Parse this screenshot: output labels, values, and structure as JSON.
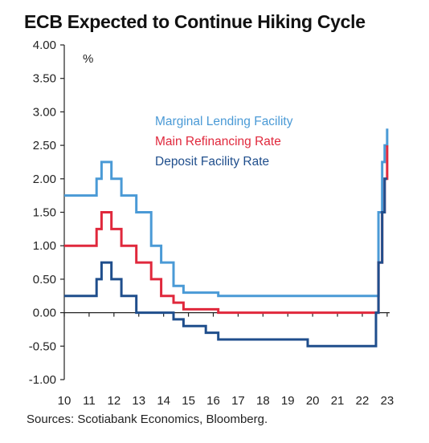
{
  "title": "ECB Expected to Continue Hiking Cycle",
  "source_note": "Sources: Scotiabank Economics, Bloomberg.",
  "chart_data": {
    "type": "line",
    "title": "ECB Expected to Continue Hiking Cycle",
    "ylabel": "%",
    "xlim": [
      10,
      23.1
    ],
    "ylim": [
      -1.0,
      4.0
    ],
    "yticks": [
      4.0,
      3.5,
      3.0,
      2.5,
      2.0,
      1.5,
      1.0,
      0.5,
      0.0,
      -0.5,
      -1.0
    ],
    "ytick_labels": [
      "4.00",
      "3.50",
      "3.00",
      "2.50",
      "2.00",
      "1.50",
      "1.00",
      "0.50",
      "0.00",
      "-0.50",
      "-1.00"
    ],
    "xticks": [
      10,
      11,
      12,
      13,
      14,
      15,
      16,
      17,
      18,
      19,
      20,
      21,
      22,
      23
    ],
    "xtick_labels": [
      "10",
      "11",
      "12",
      "13",
      "14",
      "15",
      "16",
      "17",
      "18",
      "19",
      "20",
      "21",
      "22",
      "23"
    ],
    "legend_placement": "upper-center",
    "grid": false,
    "series": [
      {
        "name": "Marginal Lending Facility",
        "color": "#4a9ad6",
        "x": [
          10,
          11.3,
          11.5,
          11.9,
          12.3,
          12.9,
          13.5,
          13.9,
          14.4,
          14.8,
          15.2,
          15.7,
          16.2,
          22.55,
          22.65,
          22.8,
          22.9,
          23.0
        ],
        "y": [
          1.75,
          2.0,
          2.25,
          2.0,
          1.75,
          1.5,
          1.0,
          0.75,
          0.4,
          0.3,
          0.3,
          0.3,
          0.25,
          0.25,
          1.5,
          2.25,
          2.5,
          2.75
        ]
      },
      {
        "name": "Main Refinancing Rate",
        "color": "#e0283c",
        "x": [
          10,
          11.3,
          11.5,
          11.9,
          12.3,
          12.9,
          13.5,
          13.9,
          14.4,
          14.8,
          15.2,
          15.7,
          16.2,
          22.55,
          22.65,
          22.8,
          22.9,
          23.0
        ],
        "y": [
          1.0,
          1.25,
          1.5,
          1.25,
          1.0,
          0.75,
          0.5,
          0.25,
          0.15,
          0.05,
          0.05,
          0.05,
          0.0,
          0.0,
          0.75,
          1.5,
          2.0,
          2.5
        ]
      },
      {
        "name": "Deposit Facility Rate",
        "color": "#1f4e8c",
        "x": [
          10,
          11.3,
          11.5,
          11.9,
          12.3,
          12.9,
          13.5,
          13.9,
          14.4,
          14.8,
          15.2,
          15.7,
          16.2,
          19.8,
          22.55,
          22.65,
          22.8,
          22.9,
          23.0
        ],
        "y": [
          0.25,
          0.5,
          0.75,
          0.5,
          0.25,
          0.0,
          0.0,
          0.0,
          -0.1,
          -0.2,
          -0.2,
          -0.3,
          -0.4,
          -0.5,
          0.0,
          0.75,
          1.5,
          2.0,
          2.0
        ]
      }
    ]
  }
}
